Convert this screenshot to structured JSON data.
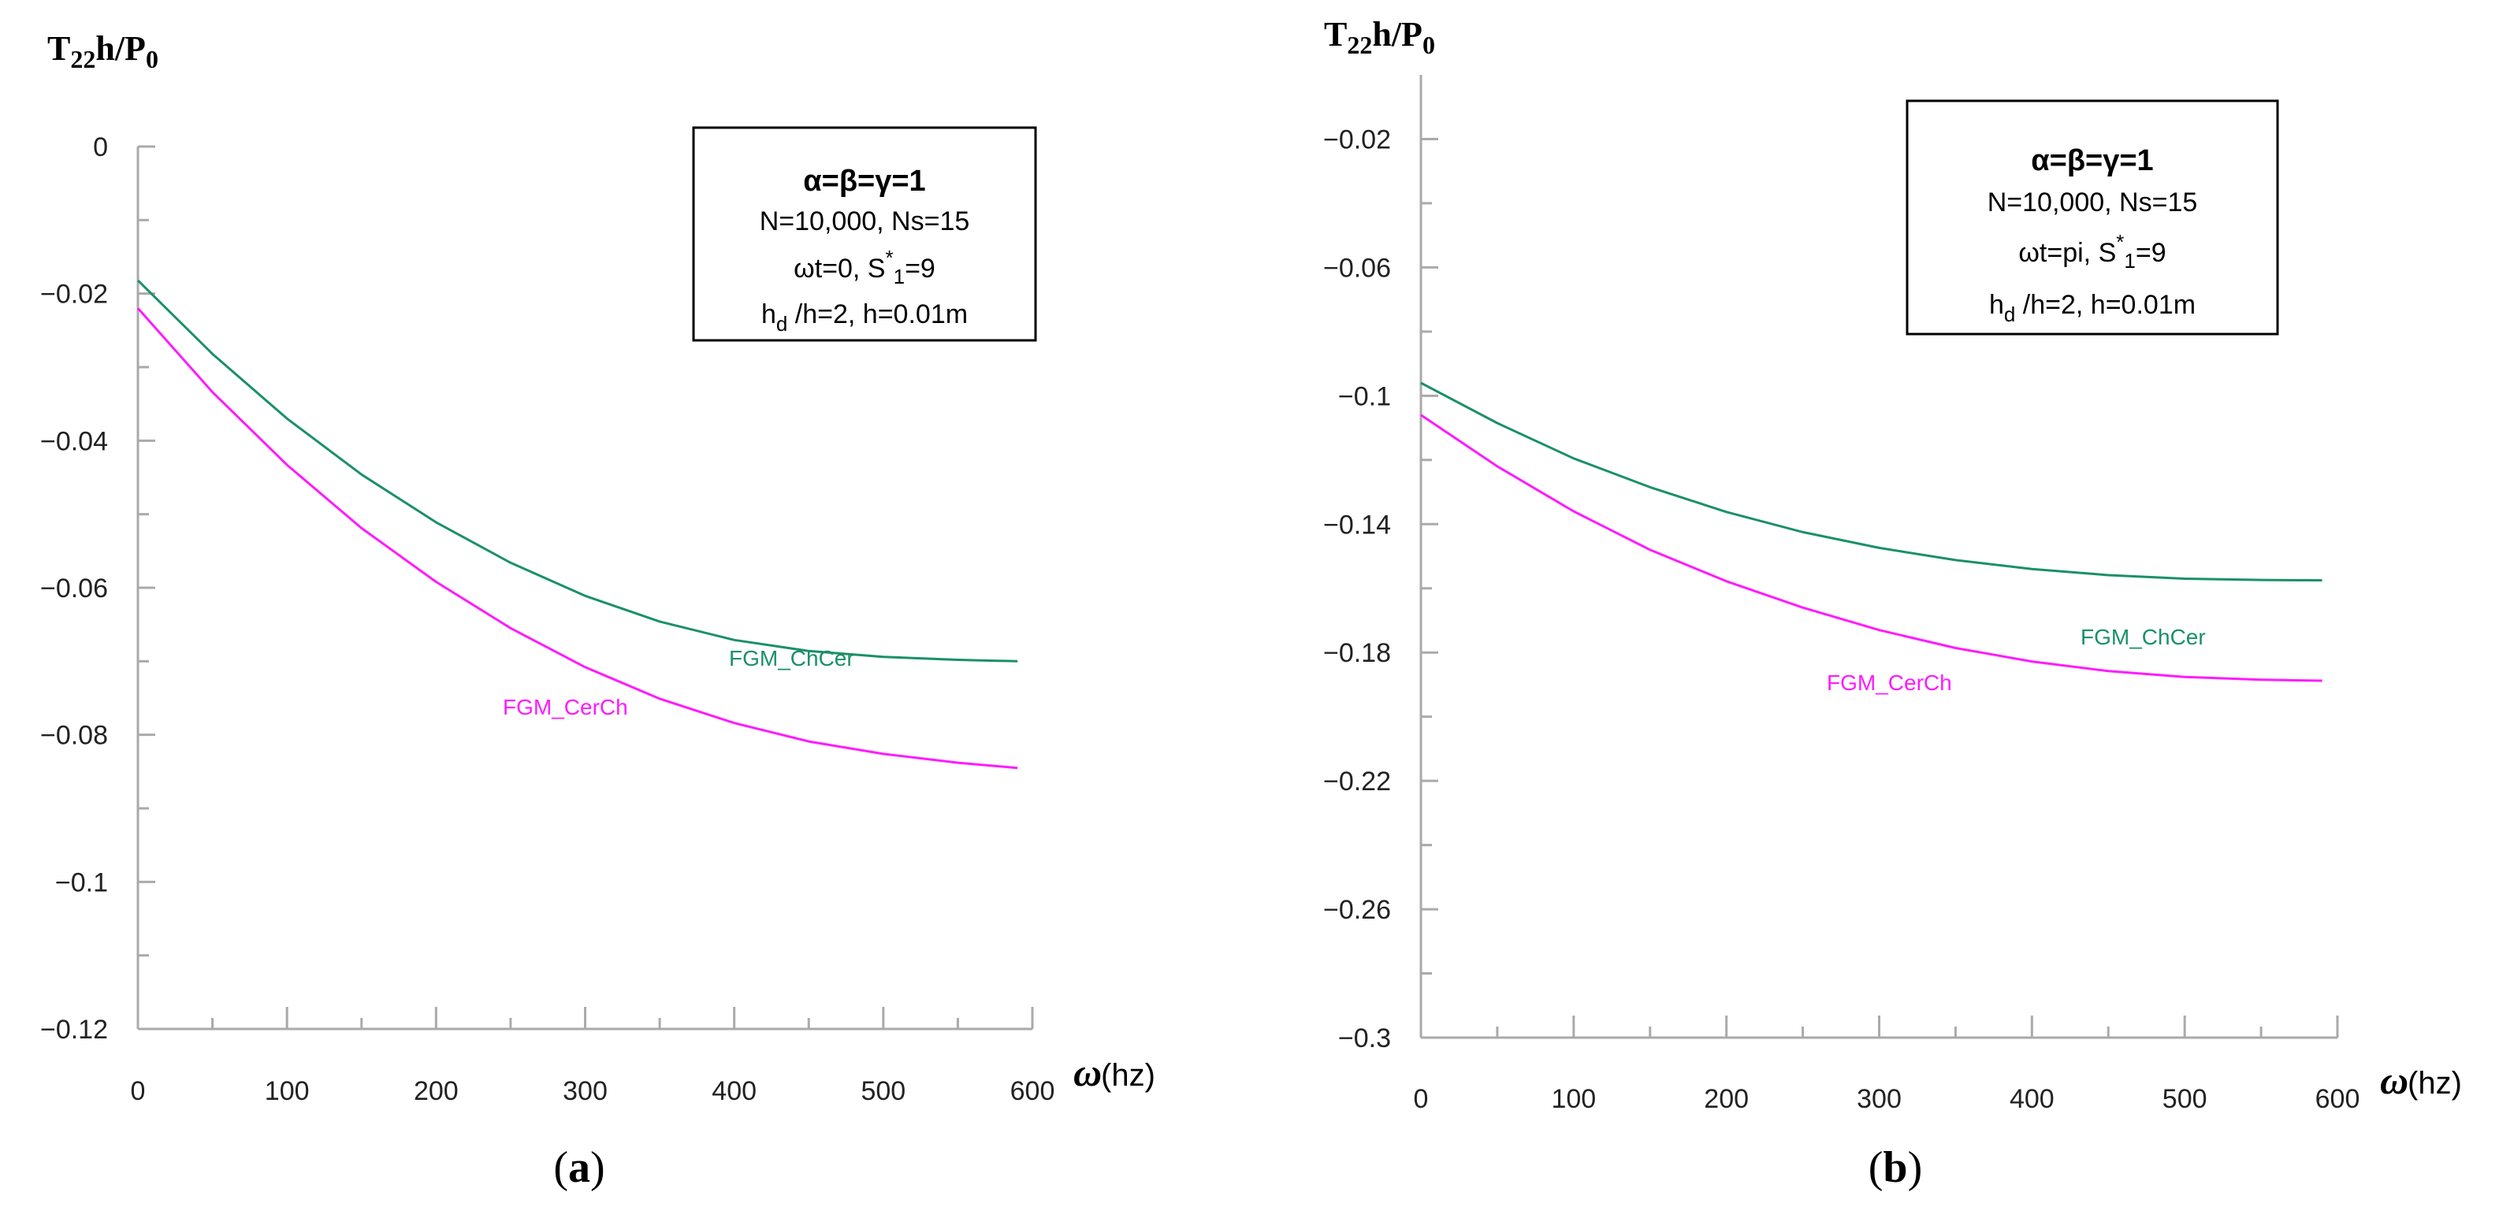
{
  "figure": {
    "panels": [
      {
        "label": "a",
        "y_axis_title": "T",
        "y_axis_title_sub": "22",
        "y_axis_title_tail": "h/P",
        "y_axis_title_sub2": "0",
        "x_axis_symbol": "ω",
        "x_axis_unit": "(hz)",
        "annotation": {
          "line1": "α=β=γ=1",
          "line2": "N=10,000, Ns=15",
          "line3_pre": "ωt=0, S",
          "line3_sup": "*",
          "line3_sub": "1",
          "line3_post": "=9",
          "line4_pre": "h",
          "line4_sub": "d",
          "line4_post": " /h=2,  h=0.01m"
        }
      },
      {
        "label": "b",
        "y_axis_title": "T",
        "y_axis_title_sub": "22",
        "y_axis_title_tail": "h/P",
        "y_axis_title_sub2": "0",
        "x_axis_symbol": "ω",
        "x_axis_unit": "(hz)",
        "annotation": {
          "line1": "α=β=γ=1",
          "line2": "N=10,000, Ns=15",
          "line3_pre": "ωt=pi, S",
          "line3_sup": "*",
          "line3_sub": "1",
          "line3_post": "=9",
          "line4_pre": "h",
          "line4_sub": "d",
          "line4_post": " /h=2,  h=0.01m"
        }
      }
    ]
  },
  "chart_data": [
    {
      "type": "line",
      "title": "(a)",
      "xlabel": "ω (hz)",
      "ylabel": "T22h/P0",
      "xlim": [
        0,
        600
      ],
      "ylim": [
        -0.12,
        0
      ],
      "xticks": [
        0,
        100,
        200,
        300,
        400,
        500,
        600
      ],
      "yticks": [
        0,
        -0.02,
        -0.04,
        -0.06,
        -0.08,
        -0.1,
        -0.12
      ],
      "xtick_labels": [
        "0",
        "100",
        "200",
        "300",
        "400",
        "500",
        "600"
      ],
      "ytick_labels": [
        "0",
        "−0.02",
        "−0.04",
        "−0.06",
        "−0.08",
        "−0.1",
        "−0.12"
      ],
      "x": [
        0,
        50,
        100,
        150,
        200,
        250,
        300,
        350,
        400,
        450,
        500,
        550,
        590
      ],
      "series": [
        {
          "name": "FGM_ChCer",
          "color": "#1a9068",
          "values": [
            -0.0182,
            -0.0282,
            -0.037,
            -0.0446,
            -0.0511,
            -0.0566,
            -0.0611,
            -0.0646,
            -0.0671,
            -0.0686,
            -0.0694,
            -0.0698,
            -0.07
          ]
        },
        {
          "name": "FGM_CerCh",
          "color": "#ff1aff",
          "values": [
            -0.022,
            -0.0334,
            -0.0433,
            -0.0519,
            -0.0592,
            -0.0655,
            -0.0708,
            -0.0751,
            -0.0784,
            -0.0809,
            -0.0826,
            -0.0838,
            -0.0845
          ]
        }
      ]
    },
    {
      "type": "line",
      "title": "(b)",
      "xlabel": "ω (hz)",
      "ylabel": "T22h/P0",
      "xlim": [
        0,
        600
      ],
      "ylim": [
        -0.3,
        0
      ],
      "xticks": [
        0,
        100,
        200,
        300,
        400,
        500,
        600
      ],
      "yticks": [
        -0.02,
        -0.06,
        -0.1,
        -0.14,
        -0.18,
        -0.22,
        -0.26,
        -0.3
      ],
      "xtick_labels": [
        "0",
        "100",
        "200",
        "300",
        "400",
        "500",
        "600"
      ],
      "ytick_labels": [
        "−0.02",
        "−0.06",
        "−0.1",
        "−0.14",
        "−0.18",
        "−0.22",
        "−0.26",
        "−0.3"
      ],
      "x": [
        0,
        50,
        100,
        150,
        200,
        250,
        300,
        350,
        400,
        450,
        500,
        550,
        590
      ],
      "series": [
        {
          "name": "FGM_ChCer",
          "color": "#1a9068",
          "values": [
            -0.096,
            -0.1085,
            -0.1195,
            -0.1285,
            -0.1362,
            -0.1425,
            -0.1474,
            -0.1512,
            -0.154,
            -0.1559,
            -0.157,
            -0.1574,
            -0.1575
          ]
        },
        {
          "name": "FGM_CerCh",
          "color": "#ff1aff",
          "values": [
            -0.106,
            -0.122,
            -0.136,
            -0.148,
            -0.1578,
            -0.166,
            -0.173,
            -0.1786,
            -0.1828,
            -0.1858,
            -0.1876,
            -0.1885,
            -0.1888
          ]
        }
      ]
    }
  ]
}
